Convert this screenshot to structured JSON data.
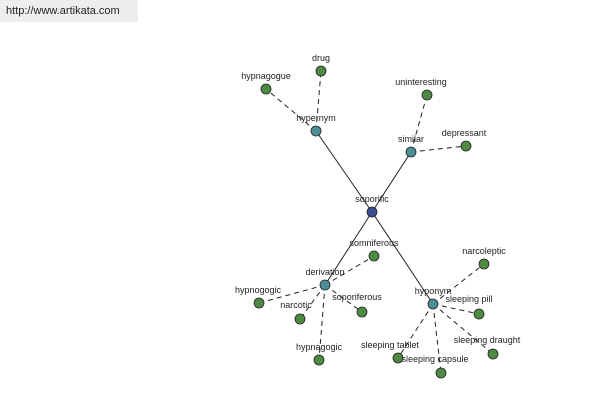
{
  "header": {
    "url": "http://www.artikata.com"
  },
  "nodes": [
    {
      "label": "soporific"
    },
    {
      "label": "hypernym"
    },
    {
      "label": "drug"
    },
    {
      "label": "hypnagogue"
    },
    {
      "label": "similar"
    },
    {
      "label": "uninteresting"
    },
    {
      "label": "depressant"
    },
    {
      "label": "derivation"
    },
    {
      "label": "somniferous"
    },
    {
      "label": "hypnogogic"
    },
    {
      "label": "narcotic"
    },
    {
      "label": "soporiferous"
    },
    {
      "label": "hypnagogic"
    },
    {
      "label": "hyponym"
    },
    {
      "label": "narcoleptic"
    },
    {
      "label": "sleeping pill"
    },
    {
      "label": "sleeping draught"
    },
    {
      "label": "sleeping tablet"
    },
    {
      "label": "sleeping capsule"
    }
  ]
}
